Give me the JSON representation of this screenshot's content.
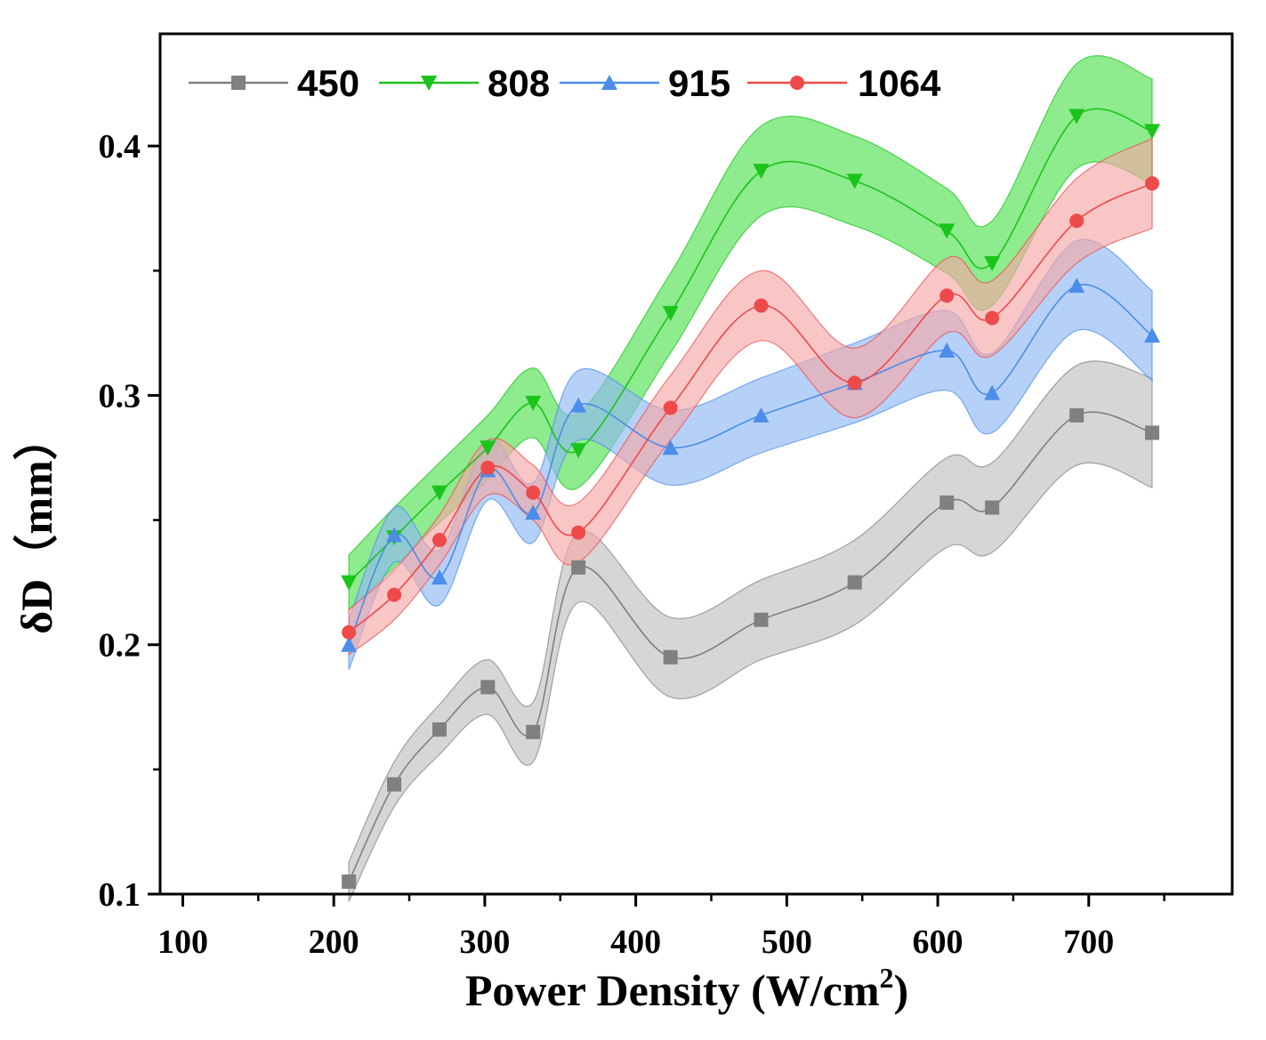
{
  "chart_data": {
    "type": "line",
    "title": "",
    "xlabel": "Power Density (W/cm",
    "xlabel_sup": "2",
    "xlabel_end": ")",
    "ylabel": "δD（mm）",
    "xlim": [
      85,
      795
    ],
    "ylim": [
      0.1,
      0.445
    ],
    "xticks": [
      100,
      200,
      300,
      400,
      500,
      600,
      700
    ],
    "xtick_labels": [
      "100",
      "200",
      "300",
      "400",
      "500",
      "600",
      "700"
    ],
    "yticks": [
      0.1,
      0.2,
      0.3,
      0.4
    ],
    "ytick_labels": [
      "0.1",
      "0.2",
      "0.3",
      "0.4"
    ],
    "grid": false,
    "legend_position": "top-left",
    "x": [
      210,
      240,
      270,
      302,
      332,
      362,
      423,
      483,
      545,
      606,
      636,
      692,
      742
    ],
    "series": [
      {
        "name": "450",
        "color": "#808080",
        "band_color": "#c0c0c0",
        "marker": "square",
        "values": [
          0.105,
          0.144,
          0.166,
          0.183,
          0.165,
          0.231,
          0.195,
          0.21,
          0.225,
          0.257,
          0.255,
          0.292,
          0.285
        ],
        "band_half_width": [
          0.008,
          0.009,
          0.01,
          0.011,
          0.012,
          0.014,
          0.016,
          0.016,
          0.017,
          0.018,
          0.018,
          0.02,
          0.022
        ]
      },
      {
        "name": "808",
        "color": "#1bc41b",
        "band_color": "#52e052",
        "marker": "triangle-down",
        "values": [
          0.225,
          0.243,
          0.261,
          0.279,
          0.297,
          0.278,
          0.333,
          0.39,
          0.386,
          0.366,
          0.353,
          0.412,
          0.406
        ],
        "band_half_width": [
          0.011,
          0.012,
          0.012,
          0.013,
          0.014,
          0.015,
          0.016,
          0.018,
          0.018,
          0.017,
          0.017,
          0.021,
          0.021
        ]
      },
      {
        "name": "915",
        "color": "#4b8de8",
        "band_color": "#8fb8f2",
        "marker": "triangle-up",
        "values": [
          0.2,
          0.244,
          0.227,
          0.27,
          0.253,
          0.296,
          0.279,
          0.292,
          0.305,
          0.318,
          0.301,
          0.344,
          0.324
        ],
        "band_half_width": [
          0.01,
          0.011,
          0.011,
          0.012,
          0.012,
          0.014,
          0.015,
          0.015,
          0.016,
          0.016,
          0.016,
          0.018,
          0.018
        ]
      },
      {
        "name": "1064",
        "color": "#ee4a4a",
        "band_color": "#f6a8a8",
        "marker": "circle",
        "values": [
          0.205,
          0.22,
          0.242,
          0.271,
          0.261,
          0.245,
          0.295,
          0.336,
          0.305,
          0.34,
          0.331,
          0.37,
          0.385
        ],
        "band_half_width": [
          0.009,
          0.01,
          0.01,
          0.011,
          0.011,
          0.012,
          0.013,
          0.014,
          0.014,
          0.015,
          0.015,
          0.017,
          0.018
        ]
      }
    ]
  }
}
